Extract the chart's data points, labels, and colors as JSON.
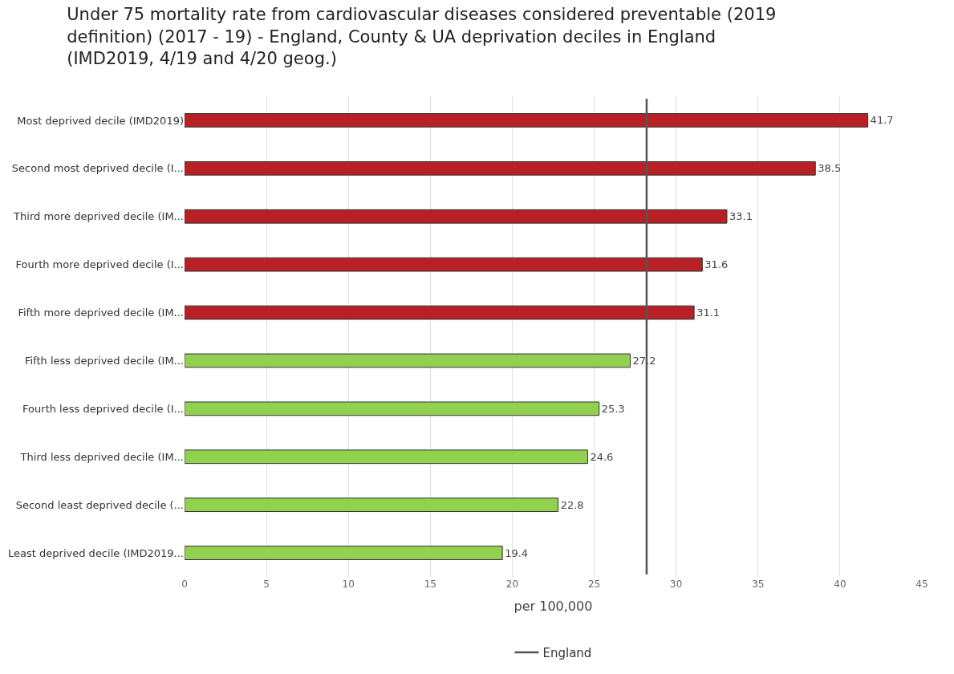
{
  "chart_data": {
    "type": "bar",
    "orientation": "horizontal",
    "title": "Under 75 mortality rate from cardiovascular diseases considered preventable (2019 definition) (2017 - 19) - England, County & UA deprivation deciles in England (IMD2019, 4/19 and 4/20 geog.)",
    "xlabel": "per 100,000",
    "categories": [
      "Most deprived decile (IMD2019)",
      "Second most deprived decile (I...",
      "Third more deprived decile (IM...",
      "Fourth more deprived decile (I...",
      "Fifth more deprived decile (IM...",
      "Fifth less deprived decile (IM...",
      "Fourth less deprived decile (I...",
      "Third less deprived decile (IM...",
      "Second least deprived decile (...",
      "Least deprived decile (IMD2019..."
    ],
    "values": [
      41.7,
      38.5,
      33.1,
      31.6,
      31.1,
      27.2,
      25.3,
      24.6,
      22.8,
      19.4
    ],
    "colors": [
      "#b72025",
      "#b72025",
      "#b72025",
      "#b72025",
      "#b72025",
      "#92d050",
      "#92d050",
      "#92d050",
      "#92d050",
      "#92d050"
    ],
    "data_labels": true,
    "xlim": [
      0,
      45
    ],
    "xticks": [
      0,
      5,
      10,
      15,
      20,
      25,
      30,
      35,
      40,
      45
    ],
    "grid": "x",
    "ref_lines": [
      {
        "axis": "x",
        "value": 28.2,
        "label": "England",
        "color": "#555555"
      }
    ],
    "legend": "bottom"
  }
}
